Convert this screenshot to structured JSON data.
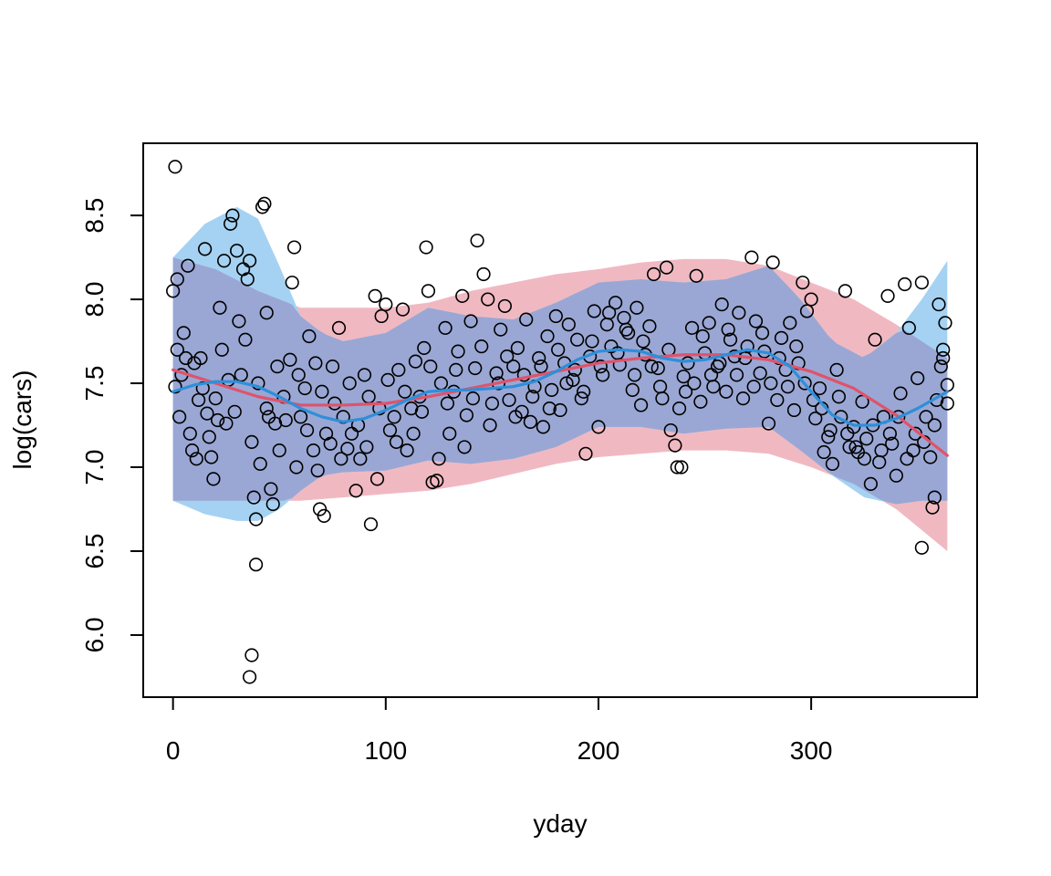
{
  "chart_data": {
    "type": "scatter",
    "title": "",
    "xlabel": "yday",
    "ylabel": "log(cars)",
    "xlim": [
      -14,
      378
    ],
    "ylim": [
      5.63,
      8.93
    ],
    "x_ticks": [
      0,
      100,
      200,
      300
    ],
    "x_tick_labels": [
      "0",
      "100",
      "200",
      "300"
    ],
    "y_ticks": [
      6.0,
      6.5,
      7.0,
      7.5,
      8.0,
      8.5
    ],
    "y_tick_labels": [
      "6.0",
      "6.5",
      "7.0",
      "7.5",
      "8.0",
      "8.5"
    ],
    "grid": false,
    "legend": "none",
    "colors": {
      "points": "#000000",
      "red_band": "#f0b9c2",
      "blue_band": "#a5d2f2",
      "overlap_band": "#9aa7d4",
      "red_line": "#df536b",
      "blue_line": "#2e8fd9"
    },
    "bands": [
      {
        "color": "red",
        "x": [
          0,
          20,
          40,
          60,
          80,
          100,
          120,
          140,
          160,
          180,
          200,
          220,
          240,
          260,
          280,
          300,
          320,
          340,
          364
        ],
        "lower": [
          6.8,
          6.8,
          6.8,
          6.8,
          6.82,
          6.84,
          6.86,
          6.9,
          6.96,
          7.02,
          7.06,
          7.08,
          7.1,
          7.1,
          7.08,
          7.0,
          6.9,
          6.75,
          6.5
        ],
        "upper": [
          8.25,
          8.18,
          8.05,
          7.95,
          7.95,
          7.95,
          7.98,
          8.05,
          8.1,
          8.15,
          8.18,
          8.22,
          8.24,
          8.24,
          8.2,
          8.1,
          8.0,
          7.85,
          7.65
        ]
      },
      {
        "color": "blue",
        "x": [
          0,
          15,
          30,
          40,
          50,
          60,
          70,
          80,
          100,
          120,
          140,
          160,
          180,
          200,
          220,
          240,
          260,
          280,
          295,
          310,
          325,
          340,
          352,
          364
        ],
        "lower": [
          6.8,
          6.72,
          6.68,
          6.68,
          6.75,
          6.86,
          6.95,
          6.97,
          6.98,
          7.04,
          7.02,
          7.05,
          7.12,
          7.24,
          7.24,
          7.2,
          7.23,
          7.24,
          7.1,
          6.95,
          6.82,
          6.78,
          6.8,
          6.8
        ],
        "upper": [
          8.25,
          8.45,
          8.55,
          8.48,
          8.2,
          7.9,
          7.8,
          7.75,
          7.8,
          7.95,
          7.9,
          7.88,
          7.98,
          8.1,
          8.12,
          8.1,
          8.12,
          8.2,
          8.0,
          7.75,
          7.65,
          7.8,
          8.0,
          8.23
        ]
      }
    ],
    "series": [
      {
        "x": [
          0,
          20,
          40,
          60,
          80,
          100,
          120,
          140,
          160,
          180,
          200,
          220,
          240,
          260,
          280,
          300,
          320,
          340,
          364
        ],
        "y": [
          7.58,
          7.5,
          7.42,
          7.37,
          7.37,
          7.38,
          7.42,
          7.47,
          7.52,
          7.57,
          7.62,
          7.65,
          7.67,
          7.67,
          7.64,
          7.57,
          7.47,
          7.31,
          7.07
        ]
      },
      {
        "x": [
          0,
          10,
          20,
          30,
          40,
          50,
          60,
          70,
          80,
          90,
          100,
          110,
          120,
          130,
          140,
          150,
          160,
          170,
          180,
          190,
          200,
          210,
          220,
          230,
          240,
          250,
          260,
          270,
          280,
          290,
          300,
          310,
          320,
          330,
          340,
          350,
          364
        ],
        "y": [
          7.45,
          7.49,
          7.51,
          7.51,
          7.48,
          7.42,
          7.35,
          7.3,
          7.27,
          7.29,
          7.34,
          7.4,
          7.45,
          7.46,
          7.46,
          7.47,
          7.48,
          7.51,
          7.57,
          7.64,
          7.69,
          7.7,
          7.69,
          7.65,
          7.63,
          7.64,
          7.67,
          7.7,
          7.68,
          7.6,
          7.45,
          7.31,
          7.25,
          7.25,
          7.29,
          7.35,
          7.45
        ]
      }
    ],
    "points": [
      [
        1,
        8.79
      ],
      [
        0,
        8.05
      ],
      [
        2,
        7.7
      ],
      [
        3,
        7.3
      ],
      [
        4,
        7.55
      ],
      [
        6,
        7.65
      ],
      [
        1,
        7.48
      ],
      [
        8,
        7.2
      ],
      [
        9,
        7.1
      ],
      [
        11,
        7.05
      ],
      [
        12,
        7.4
      ],
      [
        13,
        7.65
      ],
      [
        5,
        7.8
      ],
      [
        7,
        8.2
      ],
      [
        2,
        8.12
      ],
      [
        15,
        8.3
      ],
      [
        16,
        7.32
      ],
      [
        18,
        7.06
      ],
      [
        19,
        6.93
      ],
      [
        21,
        7.28
      ],
      [
        22,
        7.95
      ],
      [
        24,
        8.23
      ],
      [
        25,
        7.26
      ],
      [
        27,
        8.45
      ],
      [
        28,
        8.5
      ],
      [
        30,
        8.29
      ],
      [
        31,
        7.87
      ],
      [
        32,
        7.55
      ],
      [
        33,
        8.18
      ],
      [
        35,
        8.12
      ],
      [
        36,
        8.23
      ],
      [
        37,
        7.15
      ],
      [
        38,
        6.82
      ],
      [
        39,
        6.69
      ],
      [
        40,
        7.5
      ],
      [
        41,
        7.02
      ],
      [
        42,
        8.55
      ],
      [
        43,
        8.57
      ],
      [
        44,
        7.35
      ],
      [
        45,
        7.3
      ],
      [
        46,
        6.87
      ],
      [
        47,
        6.78
      ],
      [
        48,
        7.26
      ],
      [
        37,
        5.88
      ],
      [
        36,
        5.75
      ],
      [
        39,
        6.42
      ],
      [
        50,
        7.1
      ],
      [
        52,
        7.42
      ],
      [
        55,
        7.64
      ],
      [
        57,
        8.31
      ],
      [
        56,
        8.1
      ],
      [
        58,
        7.0
      ],
      [
        60,
        7.3
      ],
      [
        62,
        7.47
      ],
      [
        64,
        7.78
      ],
      [
        66,
        7.1
      ],
      [
        68,
        6.98
      ],
      [
        69,
        6.75
      ],
      [
        71,
        6.71
      ],
      [
        72,
        7.2
      ],
      [
        74,
        7.14
      ],
      [
        76,
        7.38
      ],
      [
        78,
        7.83
      ],
      [
        80,
        7.3
      ],
      [
        82,
        7.11
      ],
      [
        84,
        7.2
      ],
      [
        86,
        6.86
      ],
      [
        88,
        7.05
      ],
      [
        90,
        7.55
      ],
      [
        92,
        7.42
      ],
      [
        93,
        6.66
      ],
      [
        95,
        8.02
      ],
      [
        96,
        6.93
      ],
      [
        98,
        7.9
      ],
      [
        100,
        7.97
      ],
      [
        102,
        7.22
      ],
      [
        104,
        7.3
      ],
      [
        106,
        7.58
      ],
      [
        108,
        7.94
      ],
      [
        110,
        7.1
      ],
      [
        112,
        7.35
      ],
      [
        114,
        7.63
      ],
      [
        116,
        7.42
      ],
      [
        118,
        7.71
      ],
      [
        119,
        8.31
      ],
      [
        120,
        8.05
      ],
      [
        122,
        6.91
      ],
      [
        124,
        6.92
      ],
      [
        126,
        7.5
      ],
      [
        128,
        7.83
      ],
      [
        130,
        7.2
      ],
      [
        132,
        7.45
      ],
      [
        134,
        7.69
      ],
      [
        136,
        8.02
      ],
      [
        138,
        7.31
      ],
      [
        140,
        7.87
      ],
      [
        142,
        7.59
      ],
      [
        143,
        8.35
      ],
      [
        146,
        8.15
      ],
      [
        148,
        8.0
      ],
      [
        150,
        7.38
      ],
      [
        152,
        7.56
      ],
      [
        154,
        7.82
      ],
      [
        156,
        7.96
      ],
      [
        158,
        7.4
      ],
      [
        160,
        7.6
      ],
      [
        162,
        7.71
      ],
      [
        164,
        7.33
      ],
      [
        166,
        7.88
      ],
      [
        168,
        7.27
      ],
      [
        170,
        7.48
      ],
      [
        172,
        7.65
      ],
      [
        174,
        7.24
      ],
      [
        176,
        7.78
      ],
      [
        178,
        7.46
      ],
      [
        180,
        7.9
      ],
      [
        182,
        7.34
      ],
      [
        184,
        7.62
      ],
      [
        186,
        7.85
      ],
      [
        188,
        7.52
      ],
      [
        190,
        7.76
      ],
      [
        192,
        7.41
      ],
      [
        194,
        7.08
      ],
      [
        196,
        7.66
      ],
      [
        198,
        7.93
      ],
      [
        200,
        7.24
      ],
      [
        202,
        7.55
      ],
      [
        204,
        7.85
      ],
      [
        206,
        7.72
      ],
      [
        208,
        7.98
      ],
      [
        210,
        7.61
      ],
      [
        212,
        7.89
      ],
      [
        214,
        7.8
      ],
      [
        216,
        7.46
      ],
      [
        218,
        7.95
      ],
      [
        220,
        7.37
      ],
      [
        222,
        7.67
      ],
      [
        224,
        7.84
      ],
      [
        226,
        8.15
      ],
      [
        228,
        7.59
      ],
      [
        230,
        7.41
      ],
      [
        232,
        8.19
      ],
      [
        234,
        7.22
      ],
      [
        236,
        7.13
      ],
      [
        237,
        7.0
      ],
      [
        239,
        7.0
      ],
      [
        240,
        7.54
      ],
      [
        242,
        7.62
      ],
      [
        244,
        7.83
      ],
      [
        246,
        8.14
      ],
      [
        248,
        7.39
      ],
      [
        250,
        7.68
      ],
      [
        252,
        7.86
      ],
      [
        254,
        7.48
      ],
      [
        256,
        7.6
      ],
      [
        258,
        7.97
      ],
      [
        260,
        7.45
      ],
      [
        262,
        7.76
      ],
      [
        264,
        7.66
      ],
      [
        266,
        7.92
      ],
      [
        268,
        7.41
      ],
      [
        270,
        7.72
      ],
      [
        272,
        8.25
      ],
      [
        274,
        7.87
      ],
      [
        276,
        7.56
      ],
      [
        278,
        7.69
      ],
      [
        280,
        7.26
      ],
      [
        282,
        8.22
      ],
      [
        284,
        7.4
      ],
      [
        286,
        7.77
      ],
      [
        288,
        7.58
      ],
      [
        290,
        7.86
      ],
      [
        292,
        7.34
      ],
      [
        294,
        7.62
      ],
      [
        296,
        8.1
      ],
      [
        298,
        7.93
      ],
      [
        300,
        8.0
      ],
      [
        302,
        7.29
      ],
      [
        304,
        7.47
      ],
      [
        306,
        7.09
      ],
      [
        308,
        7.18
      ],
      [
        310,
        7.02
      ],
      [
        312,
        7.58
      ],
      [
        314,
        7.3
      ],
      [
        316,
        8.05
      ],
      [
        318,
        7.12
      ],
      [
        320,
        7.24
      ],
      [
        322,
        7.09
      ],
      [
        324,
        7.39
      ],
      [
        326,
        7.17
      ],
      [
        328,
        6.9
      ],
      [
        330,
        7.76
      ],
      [
        332,
        7.03
      ],
      [
        334,
        7.3
      ],
      [
        336,
        8.02
      ],
      [
        338,
        7.14
      ],
      [
        340,
        6.95
      ],
      [
        342,
        7.44
      ],
      [
        344,
        8.09
      ],
      [
        346,
        7.83
      ],
      [
        348,
        7.1
      ],
      [
        350,
        7.53
      ],
      [
        352,
        8.1
      ],
      [
        352,
        6.52
      ],
      [
        354,
        7.3
      ],
      [
        356,
        7.06
      ],
      [
        357,
        6.76
      ],
      [
        358,
        6.82
      ],
      [
        359,
        7.4
      ],
      [
        360,
        7.97
      ],
      [
        361,
        7.6
      ],
      [
        362,
        7.7
      ],
      [
        363,
        7.86
      ],
      [
        364,
        7.49
      ],
      [
        364,
        7.38
      ],
      [
        10,
        7.62
      ],
      [
        14,
        7.47
      ],
      [
        17,
        7.18
      ],
      [
        20,
        7.41
      ],
      [
        23,
        7.7
      ],
      [
        26,
        7.52
      ],
      [
        29,
        7.33
      ],
      [
        34,
        7.76
      ],
      [
        44,
        7.92
      ],
      [
        49,
        7.6
      ],
      [
        53,
        7.28
      ],
      [
        59,
        7.55
      ],
      [
        63,
        7.22
      ],
      [
        67,
        7.62
      ],
      [
        70,
        7.45
      ],
      [
        75,
        7.6
      ],
      [
        79,
        7.05
      ],
      [
        83,
        7.5
      ],
      [
        87,
        7.25
      ],
      [
        91,
        7.12
      ],
      [
        97,
        7.35
      ],
      [
        101,
        7.52
      ],
      [
        105,
        7.15
      ],
      [
        109,
        7.45
      ],
      [
        113,
        7.2
      ],
      [
        117,
        7.33
      ],
      [
        121,
        7.6
      ],
      [
        125,
        7.05
      ],
      [
        129,
        7.38
      ],
      [
        133,
        7.58
      ],
      [
        137,
        7.12
      ],
      [
        141,
        7.41
      ],
      [
        145,
        7.72
      ],
      [
        149,
        7.25
      ],
      [
        153,
        7.5
      ],
      [
        157,
        7.66
      ],
      [
        161,
        7.3
      ],
      [
        165,
        7.55
      ],
      [
        169,
        7.42
      ],
      [
        173,
        7.6
      ],
      [
        177,
        7.35
      ],
      [
        181,
        7.7
      ],
      [
        185,
        7.5
      ],
      [
        189,
        7.58
      ],
      [
        193,
        7.45
      ],
      [
        197,
        7.75
      ],
      [
        201,
        7.6
      ],
      [
        205,
        7.92
      ],
      [
        209,
        7.68
      ],
      [
        213,
        7.82
      ],
      [
        217,
        7.55
      ],
      [
        221,
        7.75
      ],
      [
        225,
        7.6
      ],
      [
        229,
        7.48
      ],
      [
        233,
        7.7
      ],
      [
        238,
        7.35
      ],
      [
        241,
        7.45
      ],
      [
        245,
        7.5
      ],
      [
        249,
        7.78
      ],
      [
        253,
        7.55
      ],
      [
        257,
        7.62
      ],
      [
        261,
        7.82
      ],
      [
        265,
        7.55
      ],
      [
        269,
        7.65
      ],
      [
        273,
        7.48
      ],
      [
        277,
        7.8
      ],
      [
        281,
        7.5
      ],
      [
        285,
        7.65
      ],
      [
        289,
        7.48
      ],
      [
        293,
        7.72
      ],
      [
        297,
        7.5
      ],
      [
        301,
        7.4
      ],
      [
        305,
        7.35
      ],
      [
        309,
        7.22
      ],
      [
        313,
        7.42
      ],
      [
        317,
        7.2
      ],
      [
        321,
        7.12
      ],
      [
        325,
        7.05
      ],
      [
        329,
        7.25
      ],
      [
        333,
        7.1
      ],
      [
        337,
        7.2
      ],
      [
        341,
        7.3
      ],
      [
        345,
        7.05
      ],
      [
        349,
        7.2
      ],
      [
        353,
        7.15
      ],
      [
        358,
        7.25
      ],
      [
        362,
        7.65
      ]
    ]
  }
}
